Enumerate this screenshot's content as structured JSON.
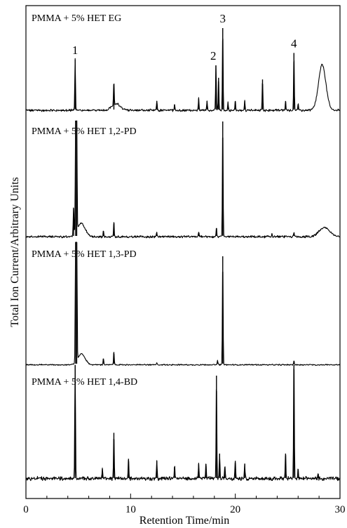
{
  "chart_data": {
    "type": "line",
    "xlabel": "Retention Time/min",
    "ylabel": "Total Ion Current/Arbitrary Units",
    "xlim": [
      0,
      30
    ],
    "x_ticks": [
      "0",
      "10",
      "20",
      "30"
    ],
    "panels": [
      {
        "name": "PMMA + 5% HET EG",
        "baseline_noise": 0.03,
        "broad_humps": [
          {
            "x": 28.3,
            "height": 0.55,
            "width": 0.35
          },
          {
            "x": 8.6,
            "height": 0.08,
            "width": 0.4
          }
        ],
        "peaks": [
          {
            "x": 4.7,
            "height": 0.62
          },
          {
            "x": 8.4,
            "height": 0.28
          },
          {
            "x": 12.5,
            "height": 0.12
          },
          {
            "x": 14.2,
            "height": 0.08
          },
          {
            "x": 16.5,
            "height": 0.15
          },
          {
            "x": 17.3,
            "height": 0.12
          },
          {
            "x": 18.15,
            "height": 0.55
          },
          {
            "x": 18.4,
            "height": 0.4
          },
          {
            "x": 18.8,
            "height": 1.0
          },
          {
            "x": 19.3,
            "height": 0.1
          },
          {
            "x": 20.0,
            "height": 0.12
          },
          {
            "x": 20.9,
            "height": 0.12
          },
          {
            "x": 22.6,
            "height": 0.38
          },
          {
            "x": 24.8,
            "height": 0.12
          },
          {
            "x": 25.6,
            "height": 0.7
          },
          {
            "x": 26.0,
            "height": 0.08
          }
        ],
        "peak_labels": [
          {
            "text": "1",
            "x": 4.7
          },
          {
            "text": "2",
            "x": 17.9
          },
          {
            "text": "3",
            "x": 18.8
          },
          {
            "text": "4",
            "x": 25.6
          }
        ]
      },
      {
        "name": "PMMA + 5% HET 1,2-PD",
        "baseline_noise": 0.02,
        "broad_humps": [
          {
            "x": 28.5,
            "height": 0.08,
            "width": 0.5
          },
          {
            "x": 5.3,
            "height": 0.12,
            "width": 0.35
          }
        ],
        "peaks": [
          {
            "x": 4.55,
            "height": 0.25
          },
          {
            "x": 4.75,
            "height": 1.15
          },
          {
            "x": 4.85,
            "height": 1.15
          },
          {
            "x": 7.4,
            "height": 0.05
          },
          {
            "x": 8.4,
            "height": 0.13
          },
          {
            "x": 12.5,
            "height": 0.04
          },
          {
            "x": 16.5,
            "height": 0.04
          },
          {
            "x": 18.2,
            "height": 0.08
          },
          {
            "x": 18.8,
            "height": 1.0
          },
          {
            "x": 23.5,
            "height": 0.03
          },
          {
            "x": 25.6,
            "height": 0.04
          }
        ]
      },
      {
        "name": "PMMA + 5% HET 1,3-PD",
        "baseline_noise": 0.012,
        "broad_humps": [
          {
            "x": 5.3,
            "height": 0.1,
            "width": 0.35
          }
        ],
        "peaks": [
          {
            "x": 4.75,
            "height": 1.6
          },
          {
            "x": 4.85,
            "height": 1.6
          },
          {
            "x": 7.4,
            "height": 0.06
          },
          {
            "x": 8.4,
            "height": 0.12
          },
          {
            "x": 12.5,
            "height": 0.02
          },
          {
            "x": 18.3,
            "height": 0.04
          },
          {
            "x": 18.8,
            "height": 1.0
          },
          {
            "x": 25.6,
            "height": 0.04
          }
        ]
      },
      {
        "name": "PMMA + 5% HET 1,4-BD",
        "baseline_noise": 0.04,
        "broad_humps": [],
        "peaks": [
          {
            "x": 4.7,
            "height": 1.25
          },
          {
            "x": 7.3,
            "height": 0.1
          },
          {
            "x": 8.4,
            "height": 0.45
          },
          {
            "x": 9.8,
            "height": 0.2
          },
          {
            "x": 12.5,
            "height": 0.18
          },
          {
            "x": 14.2,
            "height": 0.12
          },
          {
            "x": 16.5,
            "height": 0.15
          },
          {
            "x": 17.2,
            "height": 0.15
          },
          {
            "x": 18.2,
            "height": 1.0
          },
          {
            "x": 18.5,
            "height": 0.25
          },
          {
            "x": 19.0,
            "height": 0.12
          },
          {
            "x": 20.0,
            "height": 0.18
          },
          {
            "x": 20.9,
            "height": 0.15
          },
          {
            "x": 24.8,
            "height": 0.25
          },
          {
            "x": 25.6,
            "height": 1.25
          },
          {
            "x": 26.0,
            "height": 0.1
          },
          {
            "x": 27.9,
            "height": 0.04
          }
        ]
      }
    ]
  }
}
